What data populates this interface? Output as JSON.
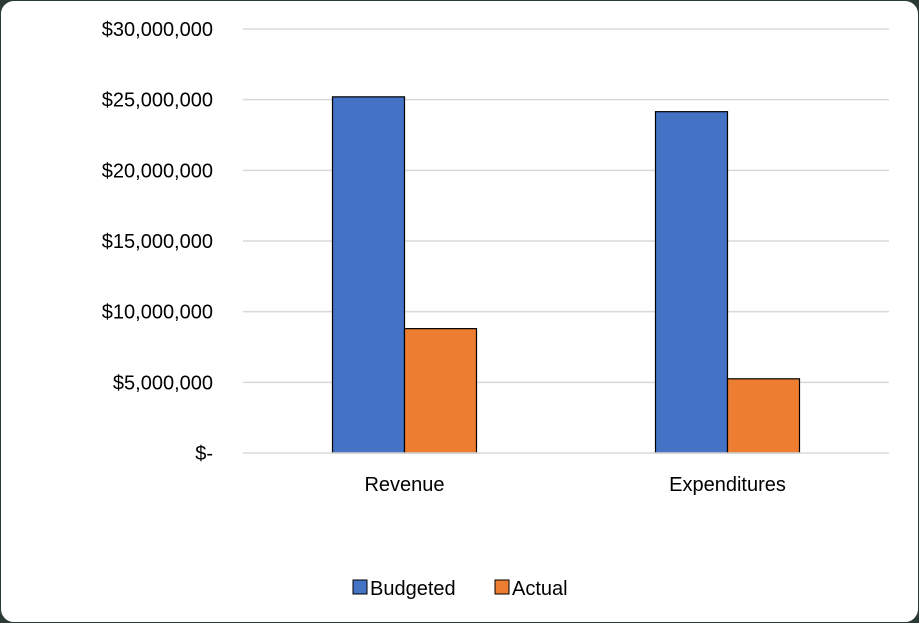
{
  "chart_data": {
    "type": "bar",
    "title": "",
    "xlabel": "",
    "ylabel": "",
    "categories": [
      "Revenue",
      "Expenditures"
    ],
    "series": [
      {
        "name": "Budgeted",
        "color": "#4472c4",
        "values": [
          25200000,
          24150000
        ]
      },
      {
        "name": "Actual",
        "color": "#ed7d31",
        "values": [
          8800000,
          5250000
        ]
      }
    ],
    "ylim": [
      0,
      30000000
    ],
    "y_ticks": [
      0,
      5000000,
      10000000,
      15000000,
      20000000,
      25000000,
      30000000
    ],
    "y_tick_labels": [
      "$-",
      "$5,000,000",
      "$10,000,000",
      "$15,000,000",
      "$20,000,000",
      "$25,000,000",
      "$30,000,000"
    ],
    "grid": true,
    "legend_position": "bottom"
  }
}
